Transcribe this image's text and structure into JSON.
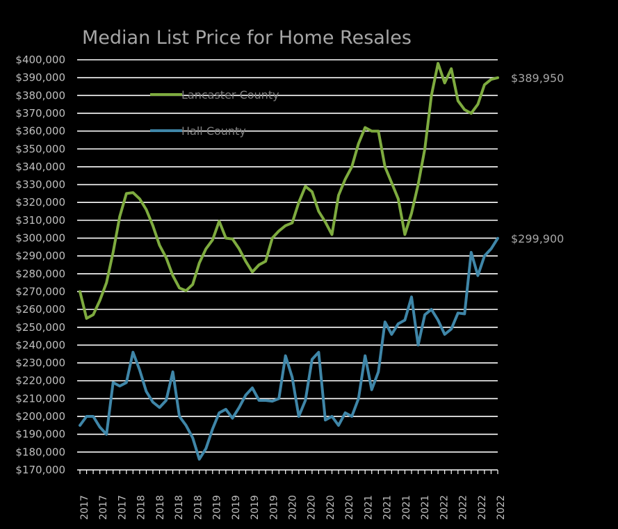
{
  "chart_data": {
    "type": "line",
    "title": "Median List Price for Home Resales",
    "xlabel": "",
    "ylabel": "",
    "ylim": [
      170000,
      400000
    ],
    "y_ticks": [
      "$170,000",
      "$180,000",
      "$190,000",
      "$200,000",
      "$210,000",
      "$220,000",
      "$230,000",
      "$240,000",
      "$250,000",
      "$260,000",
      "$270,000",
      "$280,000",
      "$290,000",
      "$300,000",
      "$310,000",
      "$320,000",
      "$330,000",
      "$340,000",
      "$350,000",
      "$360,000",
      "$370,000",
      "$380,000",
      "$390,000",
      "$400,000"
    ],
    "x_ticks": [
      "2017",
      "2017",
      "2017",
      "2018",
      "2018",
      "2018",
      "2018",
      "2019",
      "2019",
      "2019",
      "2019",
      "2020",
      "2020",
      "2020",
      "2020",
      "2021",
      "2021",
      "2021",
      "2021",
      "2022",
      "2022",
      "2022",
      "2022"
    ],
    "grid": true,
    "legend_position": "top-left",
    "series": [
      {
        "name": "Lancaster County",
        "color": "#7eab3f",
        "end_label": "$389,950",
        "values": [
          270000,
          255000,
          257000,
          265000,
          275000,
          292000,
          312000,
          325000,
          325500,
          322000,
          316000,
          307000,
          296000,
          289000,
          279000,
          272000,
          270500,
          274000,
          286000,
          294000,
          299000,
          309500,
          300000,
          299500,
          294000,
          287000,
          281000,
          285000,
          287000,
          300000,
          304000,
          307000,
          308500,
          320000,
          329000,
          326000,
          315000,
          309000,
          302000,
          324000,
          333000,
          340000,
          353000,
          362000,
          360000,
          360000,
          340000,
          331000,
          322000,
          302000,
          314000,
          330000,
          350000,
          380000,
          398000,
          387000,
          395000,
          377000,
          372000,
          370000,
          375000,
          386000,
          389000,
          389950
        ]
      },
      {
        "name": "Hall County",
        "color": "#3f86a8",
        "end_label": "$299,900",
        "values": [
          195000,
          200000,
          200000,
          194000,
          190000,
          219000,
          217000,
          219000,
          236000,
          226000,
          214000,
          208000,
          205000,
          209000,
          225000,
          200000,
          195000,
          188000,
          176000,
          182000,
          193000,
          202000,
          204000,
          199000,
          205000,
          212000,
          216000,
          209000,
          209000,
          208500,
          210000,
          234000,
          222000,
          200000,
          209000,
          232000,
          236000,
          198000,
          200000,
          195000,
          202000,
          200000,
          210000,
          234000,
          215000,
          225000,
          253000,
          246000,
          252000,
          254000,
          267000,
          240000,
          257000,
          260000,
          254000,
          246000,
          249000,
          258000,
          257500,
          292000,
          279000,
          290000,
          294000,
          299900
        ]
      }
    ]
  }
}
